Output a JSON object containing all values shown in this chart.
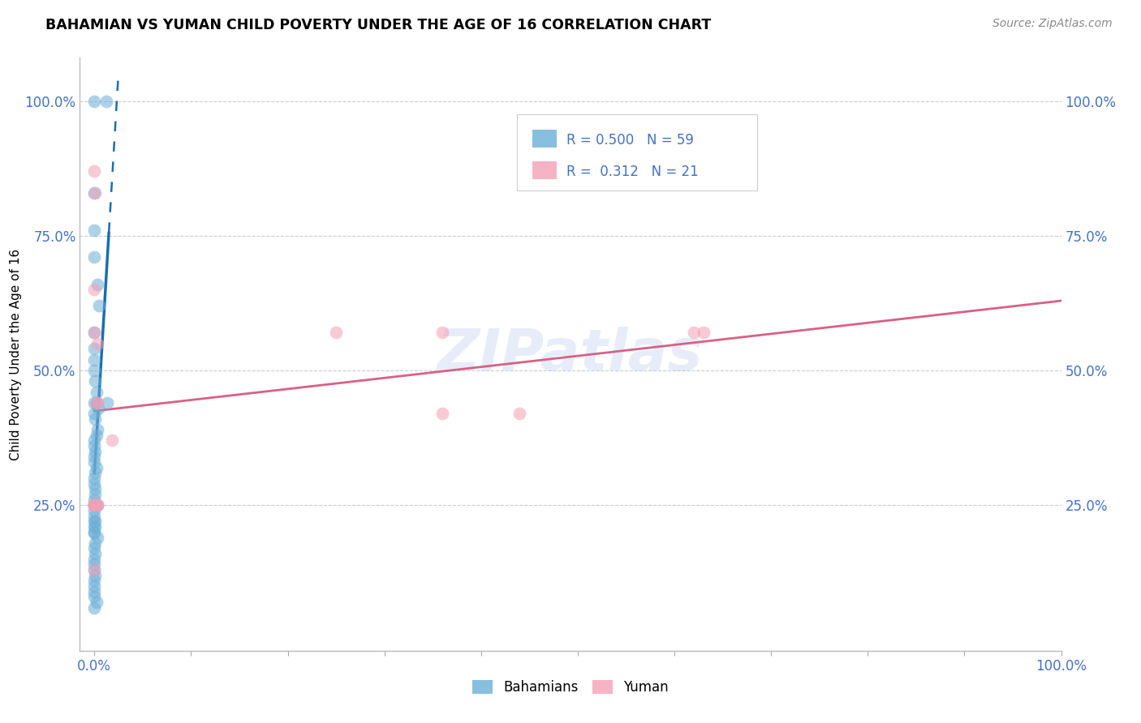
{
  "title": "BAHAMIAN VS YUMAN CHILD POVERTY UNDER THE AGE OF 16 CORRELATION CHART",
  "source": "Source: ZipAtlas.com",
  "ylabel": "Child Poverty Under the Age of 16",
  "legend_label1": "Bahamians",
  "legend_label2": "Yuman",
  "R_blue": "0.500",
  "N_blue": "59",
  "R_pink": "0.312",
  "N_pink": "21",
  "blue_color": "#6baed6",
  "pink_color": "#f4a0b5",
  "blue_line_color": "#1a6faf",
  "pink_line_color": "#d96084",
  "text_color_blue": "#4472c4",
  "watermark": "ZIPatlas",
  "blue_x": [
    0.0,
    1.2,
    0.0,
    0.0,
    0.0,
    0.3,
    0.5,
    0.0,
    0.0,
    0.0,
    0.0,
    0.1,
    0.2,
    0.4,
    0.0,
    0.0,
    0.1,
    0.3,
    0.2,
    0.0,
    0.0,
    0.1,
    0.0,
    0.0,
    0.2,
    0.1,
    0.0,
    0.0,
    0.1,
    0.1,
    0.0,
    0.0,
    0.1,
    0.0,
    0.0,
    1.3,
    0.2,
    0.0,
    0.1,
    0.0,
    0.1,
    0.0,
    0.0,
    0.3,
    0.1,
    0.0,
    0.1,
    0.0,
    0.0,
    0.0,
    0.1,
    0.0,
    0.0,
    0.0,
    0.0,
    0.2,
    0.0,
    0.0,
    0.3
  ],
  "blue_y": [
    100.0,
    100.0,
    83.0,
    76.0,
    71.0,
    66.0,
    62.0,
    57.0,
    54.0,
    52.0,
    50.0,
    48.0,
    46.0,
    43.0,
    44.0,
    42.0,
    41.0,
    39.0,
    38.0,
    37.0,
    36.0,
    35.0,
    34.0,
    33.0,
    32.0,
    31.0,
    30.0,
    29.0,
    28.0,
    27.0,
    26.0,
    25.0,
    25.0,
    24.0,
    23.0,
    44.0,
    44.0,
    22.0,
    22.0,
    21.0,
    21.0,
    20.0,
    20.0,
    19.0,
    18.0,
    17.0,
    16.0,
    15.0,
    14.0,
    13.0,
    12.0,
    11.0,
    10.0,
    9.0,
    8.0,
    7.0,
    6.0,
    25.0,
    25.0
  ],
  "pink_x": [
    0.0,
    0.1,
    0.0,
    0.3,
    1.8,
    0.3,
    0.3,
    44.0,
    0.3,
    0.3,
    25.0,
    36.0,
    62.0,
    63.0,
    0.0,
    0.0,
    0.0,
    0.0,
    0.0,
    0.0,
    36.0
  ],
  "pink_y": [
    87.0,
    83.0,
    65.0,
    55.0,
    37.0,
    44.0,
    44.0,
    42.0,
    25.0,
    25.0,
    57.0,
    57.0,
    57.0,
    57.0,
    25.0,
    25.0,
    25.0,
    25.0,
    13.0,
    57.0,
    42.0
  ],
  "blue_line_x0": 0.0,
  "blue_line_x1": 1.5,
  "blue_line_dash_x1": 2.2,
  "xlim": [
    -1.5,
    100.0
  ],
  "ylim": [
    -2.0,
    108.0
  ],
  "x_ticks": [
    0.0,
    10.0,
    20.0,
    30.0,
    40.0,
    50.0,
    60.0,
    70.0,
    80.0,
    90.0,
    100.0
  ],
  "y_ticks": [
    0.0,
    25.0,
    50.0,
    75.0,
    100.0
  ]
}
